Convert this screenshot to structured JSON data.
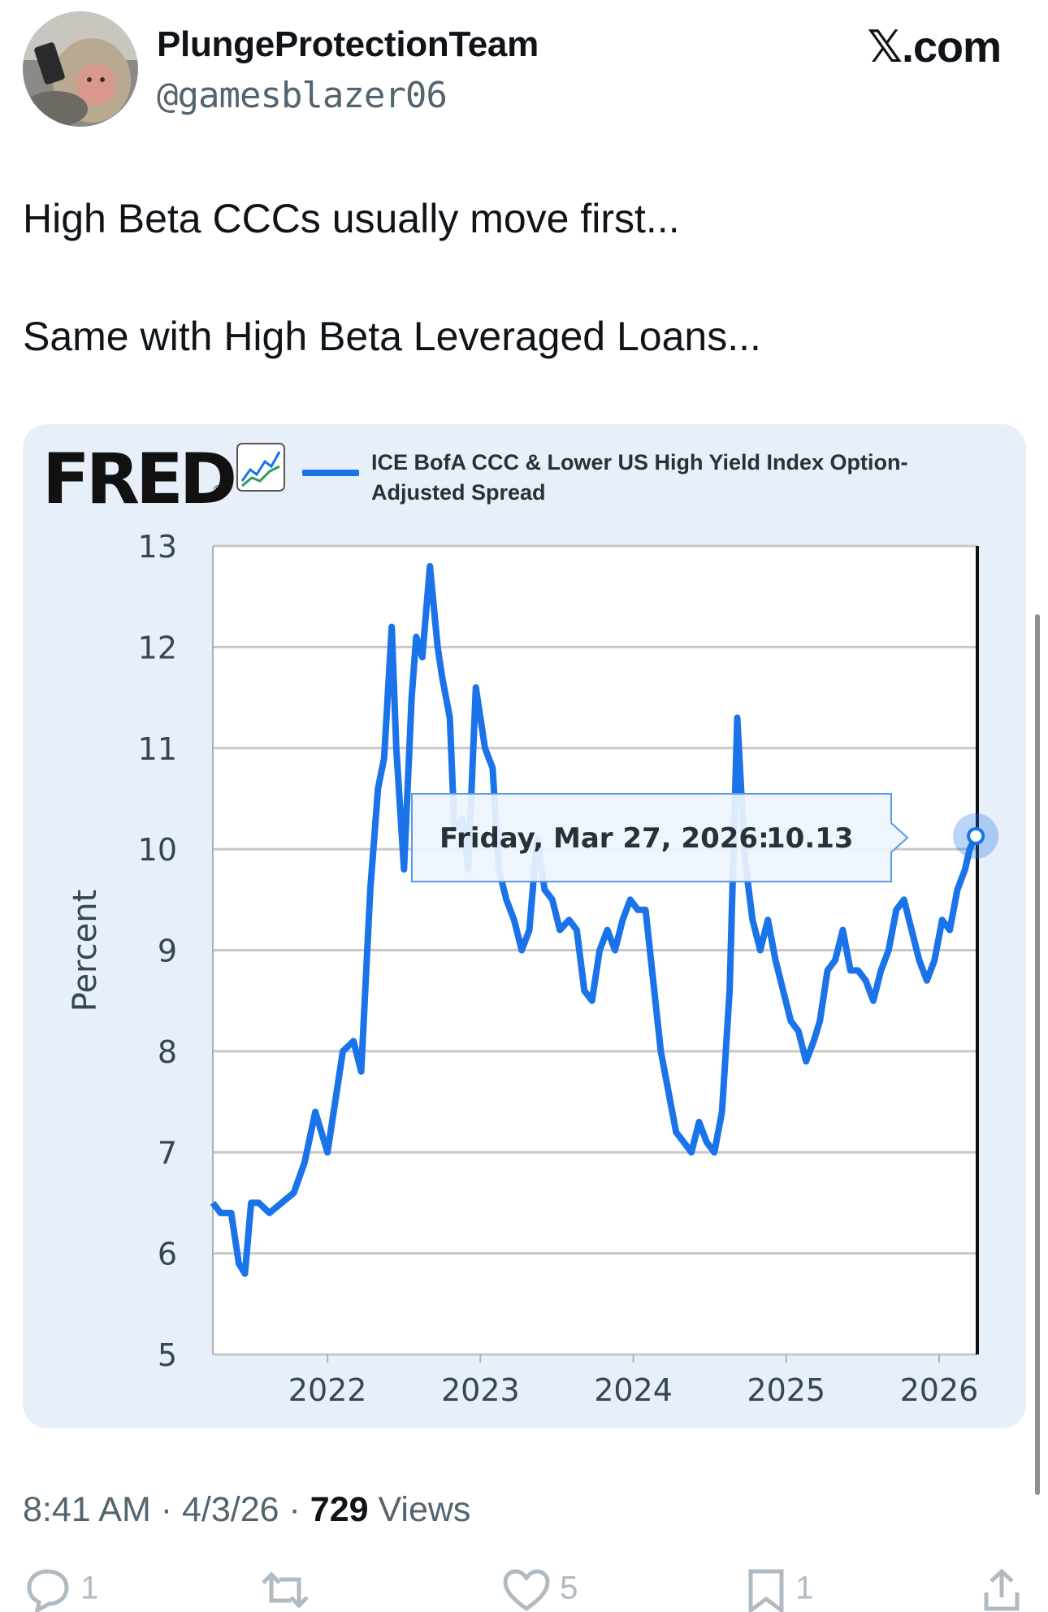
{
  "header": {
    "display_name": "PlungeProtectionTeam",
    "handle": "@gamesblazer06",
    "brand": "𝕏.com",
    "avatar_icon": "monkey-avatar"
  },
  "tweet": {
    "line1": "High Beta CCCs usually move first...",
    "line2": "Same with High Beta Leveraged Loans..."
  },
  "chart_card": {
    "logo": "FRED",
    "logo_reg": "®",
    "logo_icon": "trend-chart-icon",
    "accent": "#1a73e8",
    "tooltip": {
      "date": "Friday, Mar 27, 2026:",
      "value": "10.13"
    }
  },
  "chart_data": {
    "type": "line",
    "title": "",
    "xlabel": "",
    "ylabel": "Percent",
    "ylim": [
      5,
      13
    ],
    "xlim": [
      2021.25,
      2026.25
    ],
    "yticks": [
      "13",
      "12",
      "11",
      "10",
      "9",
      "8",
      "7",
      "6",
      "5"
    ],
    "xticks": [
      "2022",
      "2023",
      "2024",
      "2025",
      "2026"
    ],
    "grid": true,
    "legend_position": "top",
    "series": [
      {
        "name": "ICE BofA CCC & Lower US High Yield Index Option-Adjusted Spread",
        "color": "#1a73e8",
        "x": [
          2021.25,
          2021.3,
          2021.37,
          2021.42,
          2021.46,
          2021.5,
          2021.55,
          2021.62,
          2021.7,
          2021.78,
          2021.85,
          2021.92,
          2022.0,
          2022.05,
          2022.1,
          2022.17,
          2022.22,
          2022.28,
          2022.33,
          2022.37,
          2022.42,
          2022.45,
          2022.5,
          2022.55,
          2022.58,
          2022.62,
          2022.67,
          2022.72,
          2022.75,
          2022.8,
          2022.83,
          2022.88,
          2022.92,
          2022.97,
          2023.03,
          2023.08,
          2023.12,
          2023.17,
          2023.22,
          2023.27,
          2023.32,
          2023.37,
          2023.42,
          2023.47,
          2023.52,
          2023.58,
          2023.63,
          2023.68,
          2023.73,
          2023.78,
          2023.83,
          2023.88,
          2023.93,
          2023.98,
          2024.03,
          2024.08,
          2024.13,
          2024.18,
          2024.23,
          2024.28,
          2024.33,
          2024.38,
          2024.43,
          2024.48,
          2024.53,
          2024.58,
          2024.63,
          2024.68,
          2024.73,
          2024.78,
          2024.83,
          2024.88,
          2024.93,
          2024.98,
          2025.03,
          2025.08,
          2025.13,
          2025.18,
          2025.22,
          2025.27,
          2025.32,
          2025.37,
          2025.42,
          2025.47,
          2025.52,
          2025.57,
          2025.62,
          2025.67,
          2025.72,
          2025.77,
          2025.82,
          2025.87,
          2025.92,
          2025.97,
          2026.02,
          2026.07,
          2026.12,
          2026.17,
          2026.2,
          2026.24
        ],
        "y": [
          6.5,
          6.4,
          6.4,
          5.9,
          5.8,
          6.5,
          6.5,
          6.4,
          6.5,
          6.6,
          6.9,
          7.4,
          7.0,
          7.5,
          8.0,
          8.1,
          7.8,
          9.6,
          10.6,
          10.9,
          12.2,
          11.0,
          9.8,
          11.5,
          12.1,
          11.9,
          12.8,
          12.0,
          11.7,
          11.3,
          10.2,
          10.3,
          9.8,
          11.6,
          11.0,
          10.8,
          9.8,
          9.5,
          9.3,
          9.0,
          9.2,
          10.1,
          9.6,
          9.5,
          9.2,
          9.3,
          9.2,
          8.6,
          8.5,
          9.0,
          9.2,
          9.0,
          9.3,
          9.5,
          9.4,
          9.4,
          8.7,
          8.0,
          7.6,
          7.2,
          7.1,
          7.0,
          7.3,
          7.1,
          7.0,
          7.4,
          8.6,
          11.3,
          9.9,
          9.3,
          9.0,
          9.3,
          8.9,
          8.6,
          8.3,
          8.2,
          7.9,
          8.1,
          8.3,
          8.8,
          8.9,
          9.2,
          8.8,
          8.8,
          8.7,
          8.5,
          8.8,
          9.0,
          9.4,
          9.5,
          9.2,
          8.9,
          8.7,
          8.9,
          9.3,
          9.2,
          9.6,
          9.8,
          10.0,
          10.13
        ]
      }
    ],
    "highlight": {
      "x": 2026.24,
      "y": 10.13
    }
  },
  "footer": {
    "time": "8:41 AM",
    "date": "4/3/26",
    "views_count": "729",
    "views_label": "Views",
    "reply_count": "1",
    "like_count": "5",
    "bookmark_count": "1"
  }
}
